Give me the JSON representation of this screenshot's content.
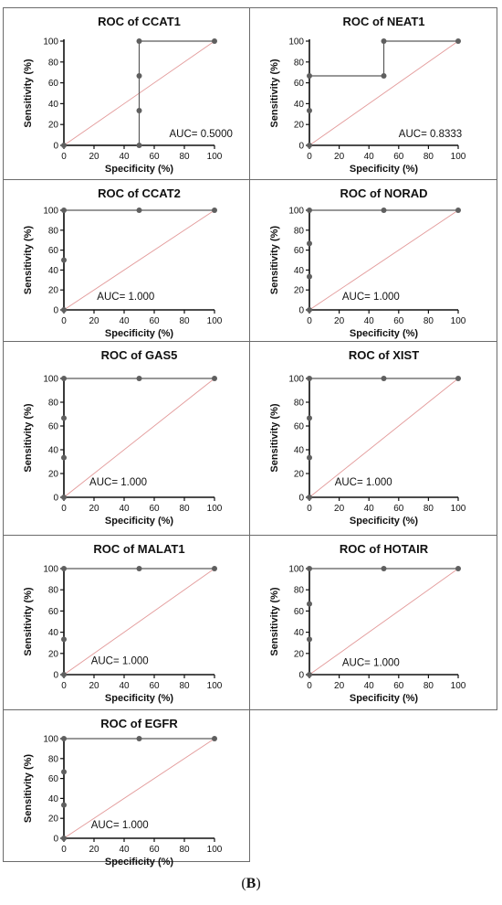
{
  "caption": {
    "open": "(",
    "letter": "B",
    "close": ")"
  },
  "colors": {
    "curve": "#5a5a5a",
    "point": "#5f5f5f",
    "reference": "#e39a9a",
    "axis": "#111111"
  },
  "chart_data": [
    {
      "type": "line",
      "title": "ROC of CCAT1",
      "xlabel": "Specificity (%)",
      "ylabel": "Sensitivity (%)",
      "xlim": [
        0,
        100
      ],
      "ylim": [
        0,
        100
      ],
      "xticks": [
        "0",
        "20",
        "40",
        "60",
        "80",
        "100"
      ],
      "yticks": [
        "0",
        "20",
        "40",
        "60",
        "80",
        "100"
      ],
      "auc": "AUC= 0.5000",
      "points": [
        [
          0,
          0
        ],
        [
          50,
          0
        ],
        [
          50,
          33.33
        ],
        [
          50,
          66.67
        ],
        [
          50,
          100
        ],
        [
          100,
          100
        ]
      ],
      "reference_line": [
        [
          0,
          0
        ],
        [
          100,
          100
        ]
      ]
    },
    {
      "type": "line",
      "title": "ROC of NEAT1",
      "xlabel": "Specificity (%)",
      "ylabel": "Sensitivity (%)",
      "xlim": [
        0,
        100
      ],
      "ylim": [
        0,
        100
      ],
      "xticks": [
        "0",
        "20",
        "40",
        "60",
        "80",
        "100"
      ],
      "yticks": [
        "0",
        "20",
        "40",
        "60",
        "80",
        "100"
      ],
      "auc": "AUC= 0.8333",
      "points": [
        [
          0,
          0
        ],
        [
          0,
          33.33
        ],
        [
          0,
          66.67
        ],
        [
          50,
          66.67
        ],
        [
          50,
          100
        ],
        [
          100,
          100
        ]
      ],
      "reference_line": [
        [
          0,
          0
        ],
        [
          100,
          100
        ]
      ]
    },
    {
      "type": "line",
      "title": "ROC of CCAT2",
      "xlabel": "Specificity (%)",
      "ylabel": "Sensitivity (%)",
      "xlim": [
        0,
        100
      ],
      "ylim": [
        0,
        100
      ],
      "xticks": [
        "0",
        "20",
        "40",
        "60",
        "80",
        "100"
      ],
      "yticks": [
        "0",
        "20",
        "40",
        "60",
        "80",
        "100"
      ],
      "auc": "AUC= 1.000",
      "points": [
        [
          0,
          0
        ],
        [
          0,
          50
        ],
        [
          0,
          100
        ],
        [
          50,
          100
        ],
        [
          100,
          100
        ]
      ],
      "reference_line": [
        [
          0,
          0
        ],
        [
          100,
          100
        ]
      ]
    },
    {
      "type": "line",
      "title": "ROC of NORAD",
      "xlabel": "Specificity (%)",
      "ylabel": "Sensitivity (%)",
      "xlim": [
        0,
        100
      ],
      "ylim": [
        0,
        100
      ],
      "xticks": [
        "0",
        "20",
        "40",
        "60",
        "80",
        "100"
      ],
      "yticks": [
        "0",
        "20",
        "40",
        "60",
        "80",
        "100"
      ],
      "auc": "AUC= 1.000",
      "points": [
        [
          0,
          0
        ],
        [
          0,
          33.33
        ],
        [
          0,
          66.67
        ],
        [
          0,
          100
        ],
        [
          50,
          100
        ],
        [
          100,
          100
        ]
      ],
      "reference_line": [
        [
          0,
          0
        ],
        [
          100,
          100
        ]
      ]
    },
    {
      "type": "line",
      "title": "ROC of GAS5",
      "xlabel": "Specificity (%)",
      "ylabel": "Sensitivity (%)",
      "xlim": [
        0,
        100
      ],
      "ylim": [
        0,
        100
      ],
      "xticks": [
        "0",
        "20",
        "40",
        "60",
        "80",
        "100"
      ],
      "yticks": [
        "0",
        "20",
        "40",
        "60",
        "80",
        "100"
      ],
      "auc": "AUC= 1.000",
      "points": [
        [
          0,
          0
        ],
        [
          0,
          33.33
        ],
        [
          0,
          66.67
        ],
        [
          0,
          100
        ],
        [
          50,
          100
        ],
        [
          100,
          100
        ]
      ],
      "reference_line": [
        [
          0,
          0
        ],
        [
          100,
          100
        ]
      ]
    },
    {
      "type": "line",
      "title": "ROC of XIST",
      "xlabel": "Specificity (%)",
      "ylabel": "Sensitivity (%)",
      "xlim": [
        0,
        100
      ],
      "ylim": [
        0,
        100
      ],
      "xticks": [
        "0",
        "20",
        "40",
        "60",
        "80",
        "100"
      ],
      "yticks": [
        "0",
        "20",
        "40",
        "60",
        "80",
        "100"
      ],
      "auc": "AUC= 1.000",
      "points": [
        [
          0,
          0
        ],
        [
          0,
          33.33
        ],
        [
          0,
          66.67
        ],
        [
          0,
          100
        ],
        [
          50,
          100
        ],
        [
          100,
          100
        ]
      ],
      "reference_line": [
        [
          0,
          0
        ],
        [
          100,
          100
        ]
      ]
    },
    {
      "type": "line",
      "title": "ROC of MALAT1",
      "xlabel": "Specificity (%)",
      "ylabel": "Sensitivity (%)",
      "xlim": [
        0,
        100
      ],
      "ylim": [
        0,
        100
      ],
      "xticks": [
        "0",
        "20",
        "40",
        "60",
        "80",
        "100"
      ],
      "yticks": [
        "0",
        "20",
        "40",
        "60",
        "80",
        "100"
      ],
      "auc": "AUC= 1.000",
      "points": [
        [
          0,
          0
        ],
        [
          0,
          33.33
        ],
        [
          0,
          100
        ],
        [
          50,
          100
        ],
        [
          100,
          100
        ]
      ],
      "reference_line": [
        [
          0,
          0
        ],
        [
          100,
          100
        ]
      ]
    },
    {
      "type": "line",
      "title": "ROC of HOTAIR",
      "xlabel": "Specificity (%)",
      "ylabel": "Sensitivity (%)",
      "xlim": [
        0,
        100
      ],
      "ylim": [
        0,
        100
      ],
      "xticks": [
        "0",
        "20",
        "40",
        "60",
        "80",
        "100"
      ],
      "yticks": [
        "0",
        "20",
        "40",
        "60",
        "80",
        "100"
      ],
      "auc": "AUC= 1.000",
      "points": [
        [
          0,
          0
        ],
        [
          0,
          33.33
        ],
        [
          0,
          66.67
        ],
        [
          0,
          100
        ],
        [
          50,
          100
        ],
        [
          100,
          100
        ]
      ],
      "reference_line": [
        [
          0,
          0
        ],
        [
          100,
          100
        ]
      ]
    },
    {
      "type": "line",
      "title": "ROC of EGFR",
      "xlabel": "Specificity (%)",
      "ylabel": "Sensitivity (%)",
      "xlim": [
        0,
        100
      ],
      "ylim": [
        0,
        100
      ],
      "xticks": [
        "0",
        "20",
        "40",
        "60",
        "80",
        "100"
      ],
      "yticks": [
        "0",
        "20",
        "40",
        "60",
        "80",
        "100"
      ],
      "auc": "AUC= 1.000",
      "points": [
        [
          0,
          0
        ],
        [
          0,
          33.33
        ],
        [
          0,
          66.67
        ],
        [
          0,
          100
        ],
        [
          50,
          100
        ],
        [
          100,
          100
        ]
      ],
      "reference_line": [
        [
          0,
          0
        ],
        [
          100,
          100
        ]
      ]
    }
  ]
}
